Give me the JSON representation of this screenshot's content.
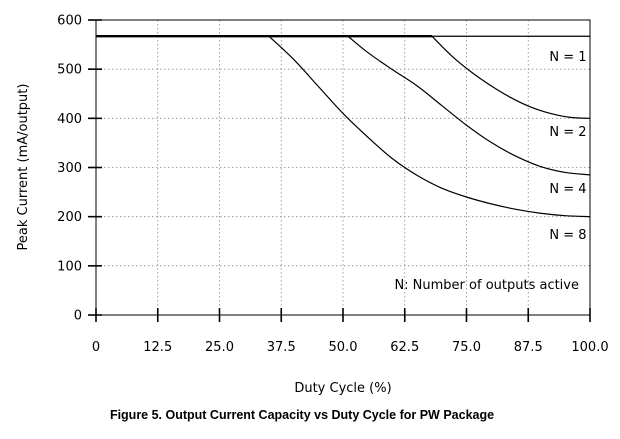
{
  "chart_data": {
    "type": "line",
    "xlabel": "Duty Cycle (%)",
    "ylabel": "Peak Current (mA/output)",
    "caption": "Figure 5.  Output Current Capacity vs Duty Cycle for PW Package",
    "note": "N: Number of outputs active",
    "xlim": [
      0,
      100
    ],
    "ylim": [
      0,
      600
    ],
    "x_ticks": [
      0,
      12.5,
      25,
      37.5,
      50,
      62.5,
      75,
      87.5,
      100
    ],
    "x_tick_labels": [
      "0",
      "12.5",
      "25.0",
      "37.5",
      "50.0",
      "62.5",
      "75.0",
      "87.5",
      "100.0"
    ],
    "y_ticks": [
      0,
      100,
      200,
      300,
      400,
      500,
      600
    ],
    "y_tick_labels": [
      "0",
      "100",
      "200",
      "300",
      "400",
      "500",
      "600"
    ],
    "grid": "dotted, both axes",
    "line_color": "#000000",
    "series": [
      {
        "label": "N = 1",
        "x": [
          0,
          100
        ],
        "y": [
          567,
          567
        ]
      },
      {
        "label": "N = 2",
        "x": [
          0,
          68,
          72,
          76,
          80,
          84,
          88,
          92,
          96,
          100
        ],
        "y": [
          567,
          567,
          527,
          494,
          466,
          442,
          423,
          410,
          402,
          400
        ]
      },
      {
        "label": "N = 4",
        "x": [
          0,
          51,
          55,
          60,
          65,
          70,
          75,
          80,
          85,
          90,
          95,
          100
        ],
        "y": [
          567,
          567,
          534,
          499,
          466,
          426,
          386,
          351,
          323,
          302,
          290,
          285
        ]
      },
      {
        "label": "N = 8",
        "x": [
          0,
          35,
          40,
          45,
          50,
          55,
          60,
          65,
          70,
          75,
          80,
          85,
          90,
          95,
          100
        ],
        "y": [
          567,
          567,
          520,
          465,
          410,
          362,
          318,
          284,
          258,
          240,
          226,
          215,
          207,
          202,
          200
        ]
      }
    ]
  }
}
